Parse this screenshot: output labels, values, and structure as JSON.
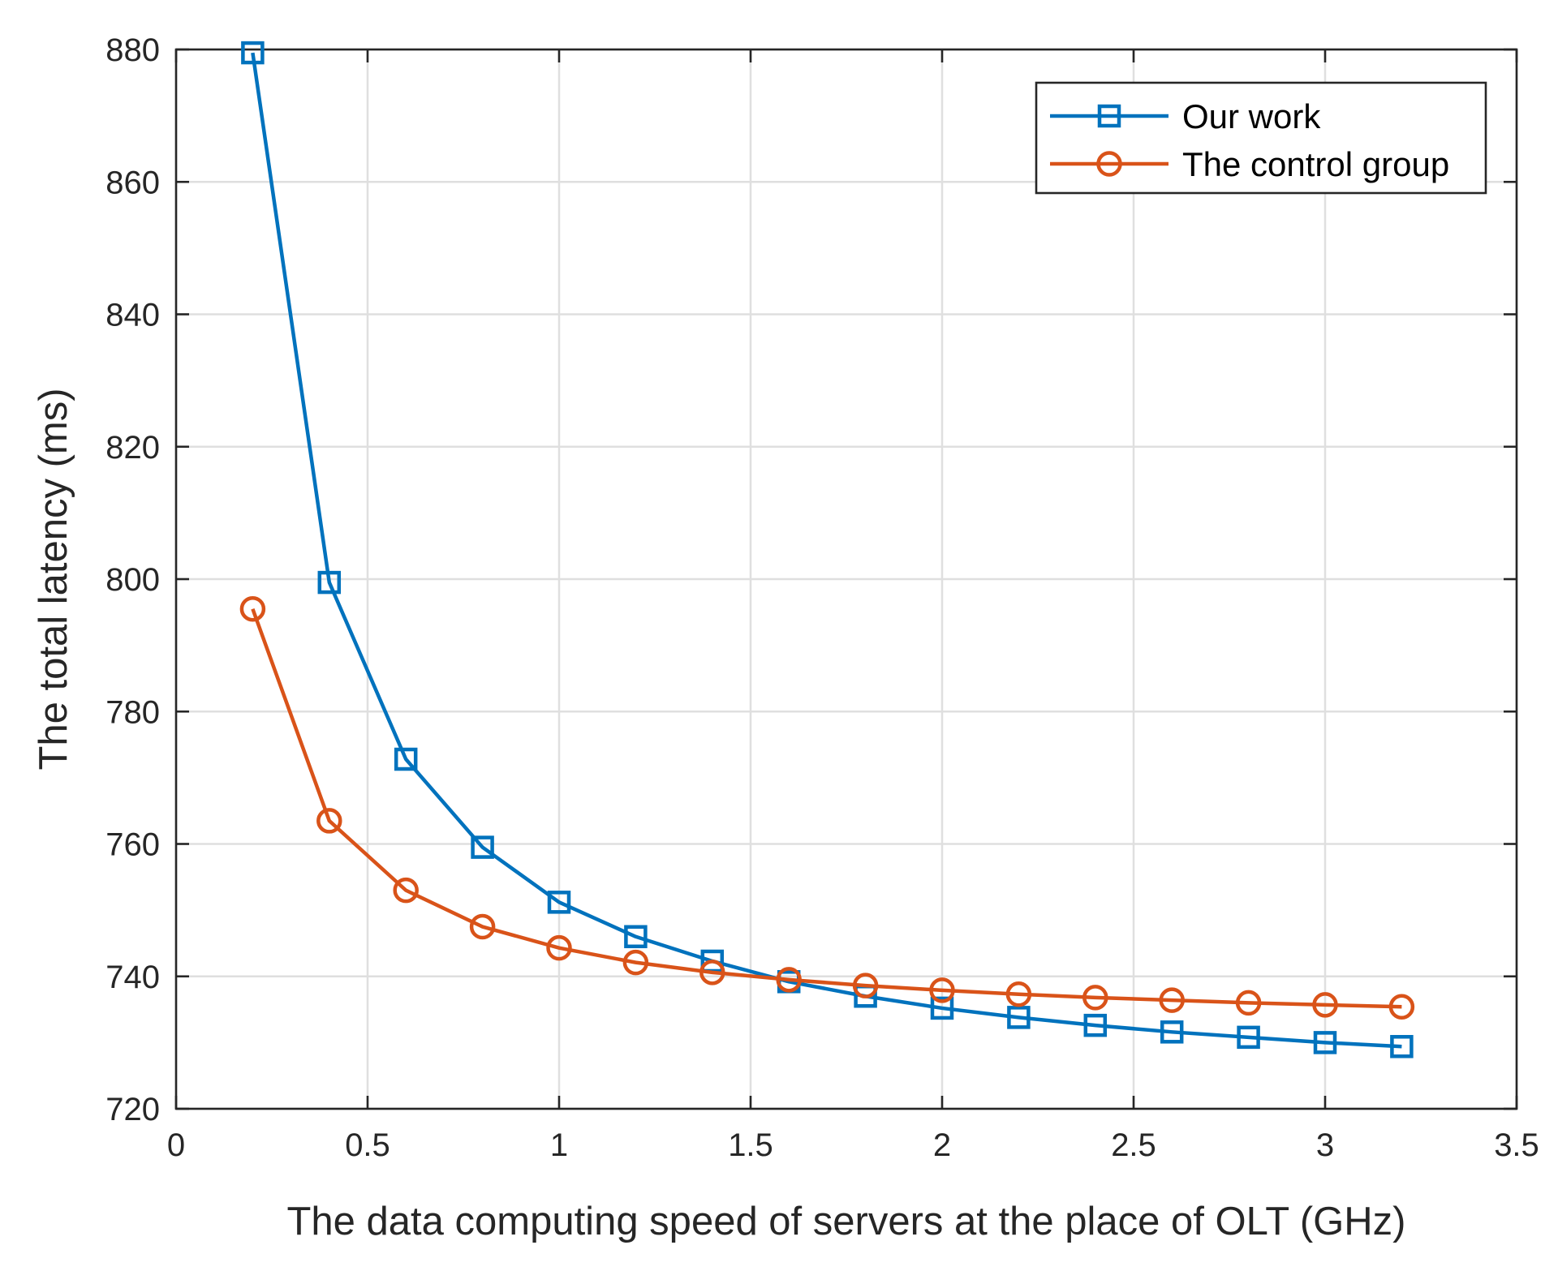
{
  "chart_data": {
    "type": "line",
    "title": "",
    "xlabel": "The data computing speed of servers at the place of OLT (GHz)",
    "ylabel": "The total latency (ms)",
    "xlim": [
      0,
      3.5
    ],
    "ylim": [
      720,
      880
    ],
    "xticks": [
      "0",
      "0.5",
      "1",
      "1.5",
      "2",
      "2.5",
      "3",
      "3.5"
    ],
    "yticks": [
      "720",
      "740",
      "760",
      "780",
      "800",
      "820",
      "840",
      "860",
      "880"
    ],
    "grid": true,
    "legend_position": "top-right",
    "x": [
      0.2,
      0.4,
      0.6,
      0.8,
      1.0,
      1.2,
      1.4,
      1.6,
      1.8,
      2.0,
      2.2,
      2.4,
      2.6,
      2.8,
      3.0,
      3.2
    ],
    "series": [
      {
        "name": "Our work",
        "color": "#0072BD",
        "marker": "square",
        "values": [
          879.5,
          799.5,
          772.8,
          759.5,
          751.2,
          746.0,
          742.3,
          739.2,
          737.0,
          735.2,
          733.8,
          732.6,
          731.6,
          730.8,
          730.0,
          729.4
        ]
      },
      {
        "name": "The control group",
        "color": "#D95319",
        "marker": "circle",
        "values": [
          795.5,
          763.5,
          753.0,
          747.5,
          744.3,
          742.1,
          740.6,
          739.5,
          738.6,
          737.9,
          737.3,
          736.8,
          736.4,
          736.0,
          735.7,
          735.4
        ]
      }
    ]
  }
}
